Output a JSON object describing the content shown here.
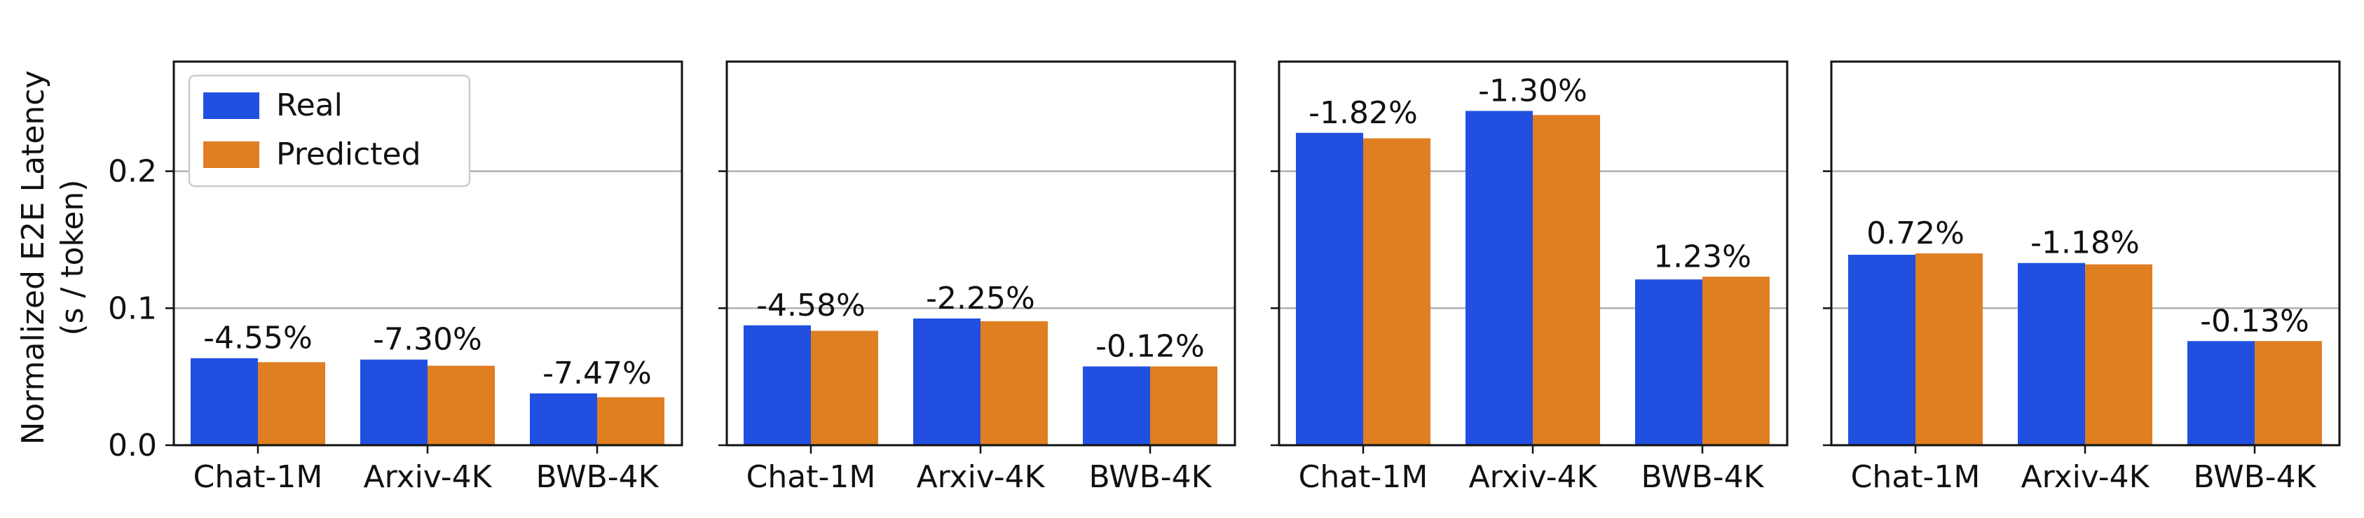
{
  "figure": {
    "ylabel_line1": "Normalized E2E Latency",
    "ylabel_line2": "(s / token)"
  },
  "legend": {
    "placement": "upper-left of first panel",
    "entries": [
      {
        "label": "Real",
        "color": "#2150e0"
      },
      {
        "label": "Predicted",
        "color": "#e07e22"
      }
    ]
  },
  "chart_data": [
    {
      "type": "bar",
      "categories": [
        "Chat-1M",
        "Arxiv-4K",
        "BWB-4K"
      ],
      "series": [
        {
          "name": "Real",
          "values": [
            0.0635,
            0.0625,
            0.0378
          ]
        },
        {
          "name": "Predicted",
          "values": [
            0.0606,
            0.058,
            0.035
          ]
        }
      ],
      "annotations": [
        "-4.55%",
        "-7.30%",
        "-7.47%"
      ],
      "ylim": [
        0,
        0.28
      ],
      "yticks": [
        0.0,
        0.1,
        0.2
      ],
      "ytick_labels": [
        "0.0",
        "0.1",
        "0.2"
      ],
      "grid": "horizontal"
    },
    {
      "type": "bar",
      "categories": [
        "Chat-1M",
        "Arxiv-4K",
        "BWB-4K"
      ],
      "series": [
        {
          "name": "Real",
          "values": [
            0.0875,
            0.0925,
            0.0575
          ]
        },
        {
          "name": "Predicted",
          "values": [
            0.0835,
            0.0905,
            0.0575
          ]
        }
      ],
      "annotations": [
        "-4.58%",
        "-2.25%",
        "-0.12%"
      ],
      "ylim": [
        0,
        0.28
      ],
      "yticks": [
        0.0,
        0.1,
        0.2
      ],
      "ytick_labels": [
        "",
        "",
        ""
      ],
      "grid": "horizontal"
    },
    {
      "type": "bar",
      "categories": [
        "Chat-1M",
        "Arxiv-4K",
        "BWB-4K"
      ],
      "series": [
        {
          "name": "Real",
          "values": [
            0.228,
            0.244,
            0.121
          ]
        },
        {
          "name": "Predicted",
          "values": [
            0.224,
            0.241,
            0.123
          ]
        }
      ],
      "annotations": [
        "-1.82%",
        "-1.30%",
        "1.23%"
      ],
      "ylim": [
        0,
        0.28
      ],
      "yticks": [
        0.0,
        0.1,
        0.2
      ],
      "ytick_labels": [
        "",
        "",
        ""
      ],
      "grid": "horizontal"
    },
    {
      "type": "bar",
      "categories": [
        "Chat-1M",
        "Arxiv-4K",
        "BWB-4K"
      ],
      "series": [
        {
          "name": "Real",
          "values": [
            0.139,
            0.133,
            0.076
          ]
        },
        {
          "name": "Predicted",
          "values": [
            0.14,
            0.132,
            0.076
          ]
        }
      ],
      "annotations": [
        "0.72%",
        "-1.18%",
        "-0.13%"
      ],
      "ylim": [
        0,
        0.28
      ],
      "yticks": [
        0.0,
        0.1,
        0.2
      ],
      "ytick_labels": [
        "",
        "",
        ""
      ],
      "grid": "horizontal"
    }
  ]
}
